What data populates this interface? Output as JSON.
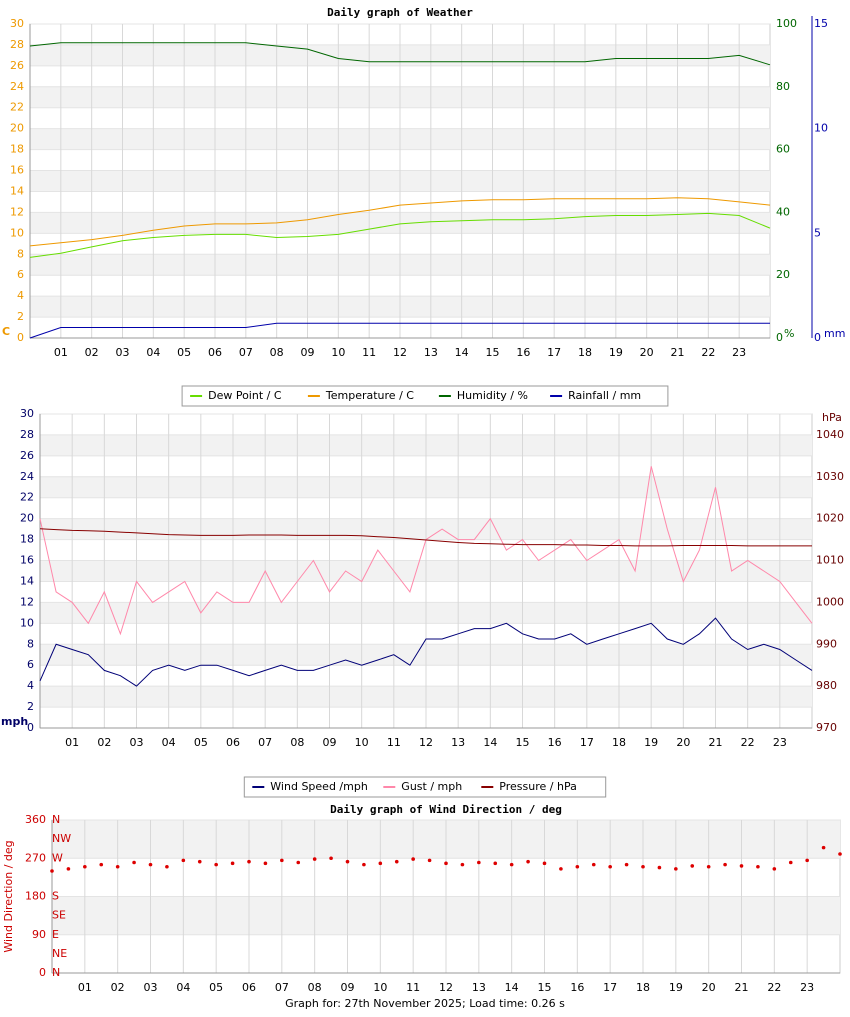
{
  "chart_data": [
    {
      "type": "line",
      "title": "Daily graph of Weather",
      "x": [
        0,
        1,
        2,
        3,
        4,
        5,
        6,
        7,
        8,
        9,
        10,
        11,
        12,
        13,
        14,
        15,
        16,
        17,
        18,
        19,
        20,
        21,
        22,
        23,
        24
      ],
      "xlim": [
        0,
        24
      ],
      "xticks": [
        {
          "value": 1,
          "label": "01"
        },
        {
          "value": 2,
          "label": "02"
        },
        {
          "value": 3,
          "label": "03"
        },
        {
          "value": 4,
          "label": "04"
        },
        {
          "value": 5,
          "label": "05"
        },
        {
          "value": 6,
          "label": "06"
        },
        {
          "value": 7,
          "label": "07"
        },
        {
          "value": 8,
          "label": "08"
        },
        {
          "value": 9,
          "label": "09"
        },
        10,
        11,
        12,
        13,
        14,
        15,
        16,
        17,
        18,
        19,
        20,
        21,
        22,
        23
      ],
      "ylim": [
        0,
        30
      ],
      "yticks": [
        0,
        2,
        4,
        6,
        8,
        10,
        12,
        14,
        16,
        18,
        20,
        22,
        24,
        26,
        28,
        30
      ],
      "y_unit": "C",
      "y_color": "#ee9900",
      "y2lim": [
        0,
        100
      ],
      "y2ticks": [
        0,
        20,
        40,
        60,
        80,
        100
      ],
      "y2_unit": "%",
      "y2_color": "#006600",
      "y3lim": [
        0,
        15
      ],
      "y3ticks": [
        0,
        5,
        10,
        15
      ],
      "y3_unit": "mm",
      "y3_color": "#0000aa",
      "grid": true,
      "legend": "bottom",
      "series": [
        {
          "name": "Dew Point / C",
          "color": "#66dd00",
          "values": [
            7.7,
            8.1,
            8.7,
            9.3,
            9.6,
            9.8,
            9.9,
            9.9,
            9.6,
            9.7,
            9.9,
            10.4,
            10.9,
            11.1,
            11.2,
            11.3,
            11.3,
            11.4,
            11.6,
            11.7,
            11.7,
            11.8,
            11.9,
            11.7,
            10.5
          ]
        },
        {
          "name": "Temperature / C",
          "color": "#ee9900",
          "values": [
            8.8,
            9.1,
            9.4,
            9.8,
            10.3,
            10.7,
            10.9,
            10.9,
            11.0,
            11.3,
            11.8,
            12.2,
            12.7,
            12.9,
            13.1,
            13.2,
            13.2,
            13.3,
            13.3,
            13.3,
            13.3,
            13.4,
            13.3,
            13.0,
            12.7
          ]
        },
        {
          "name": "Humidity / %",
          "color": "#006600",
          "axis": "y2",
          "values": [
            93,
            94,
            94,
            94,
            94,
            94,
            94,
            94,
            93,
            92,
            89,
            88,
            88,
            88,
            88,
            88,
            88,
            88,
            88,
            89,
            89,
            89,
            89,
            90,
            87
          ]
        },
        {
          "name": "Rainfall / mm",
          "color": "#0000aa",
          "axis": "y3",
          "values": [
            0,
            0.5,
            0.5,
            0.5,
            0.5,
            0.5,
            0.5,
            0.5,
            0.7,
            0.7,
            0.7,
            0.7,
            0.7,
            0.7,
            0.7,
            0.7,
            0.7,
            0.7,
            0.7,
            0.7,
            0.7,
            0.7,
            0.7,
            0.7,
            0.7
          ]
        }
      ]
    },
    {
      "type": "line",
      "x": [
        0,
        0.5,
        1,
        1.5,
        2,
        2.5,
        3,
        3.5,
        4,
        4.5,
        5,
        5.5,
        6,
        6.5,
        7,
        7.5,
        8,
        8.5,
        9,
        9.5,
        10,
        10.5,
        11,
        11.5,
        12,
        12.5,
        13,
        13.5,
        14,
        14.5,
        15,
        15.5,
        16,
        16.5,
        17,
        17.5,
        18,
        18.5,
        19,
        19.5,
        20,
        20.5,
        21,
        21.5,
        22,
        22.5,
        23,
        23.5,
        24
      ],
      "xlim": [
        0,
        24
      ],
      "xticks": [
        {
          "value": 1,
          "label": "01"
        },
        {
          "value": 2,
          "label": "02"
        },
        {
          "value": 3,
          "label": "03"
        },
        {
          "value": 4,
          "label": "04"
        },
        {
          "value": 5,
          "label": "05"
        },
        {
          "value": 6,
          "label": "06"
        },
        {
          "value": 7,
          "label": "07"
        },
        {
          "value": 8,
          "label": "08"
        },
        {
          "value": 9,
          "label": "09"
        },
        10,
        11,
        12,
        13,
        14,
        15,
        16,
        17,
        18,
        19,
        20,
        21,
        22,
        23
      ],
      "ylim": [
        0,
        30
      ],
      "yticks": [
        0,
        2,
        4,
        6,
        8,
        10,
        12,
        14,
        16,
        18,
        20,
        22,
        24,
        26,
        28,
        30
      ],
      "y_unit": "mph",
      "y_color": "#000066",
      "y2lim": [
        970,
        1045
      ],
      "y2ticks": [
        970,
        980,
        990,
        1000,
        1010,
        1020,
        1030,
        1040
      ],
      "y2_unit": "hPa",
      "y2_color": "#660000",
      "grid": true,
      "legend": "bottom",
      "series": [
        {
          "name": "Wind Speed /mph",
          "color": "#000077",
          "values": [
            4.5,
            8,
            7.5,
            7,
            5.5,
            5,
            4,
            5.5,
            6,
            5.5,
            6,
            6,
            5.5,
            5,
            5.5,
            6,
            5.5,
            5.5,
            6,
            6.5,
            6,
            6.5,
            7,
            6,
            8.5,
            8.5,
            9,
            9.5,
            9.5,
            10,
            9,
            8.5,
            8.5,
            9,
            8,
            8.5,
            9,
            9.5,
            10,
            8.5,
            8,
            9,
            10.5,
            8.5,
            7.5,
            8,
            7.5,
            6.5,
            5.5
          ]
        },
        {
          "name": "Gust / mph",
          "color": "#ff88aa",
          "values": [
            20,
            13,
            12,
            10,
            13,
            9,
            14,
            12,
            13,
            14,
            11,
            13,
            12,
            12,
            15,
            12,
            14,
            16,
            13,
            15,
            14,
            17,
            15,
            13,
            18,
            19,
            18,
            18,
            20,
            17,
            18,
            16,
            17,
            18,
            16,
            17,
            18,
            15,
            25,
            19,
            14,
            17,
            23,
            15,
            16,
            15,
            14,
            12,
            10
          ]
        },
        {
          "name": "Pressure / hPa",
          "color": "#880000",
          "axis": "y2",
          "values": [
            1017.6,
            1017.4,
            1017.2,
            1017.1,
            1017,
            1016.8,
            1016.6,
            1016.4,
            1016.2,
            1016.1,
            1016,
            1016,
            1016,
            1016.1,
            1016.1,
            1016.1,
            1016,
            1016,
            1016,
            1016,
            1015.9,
            1015.7,
            1015.5,
            1015.2,
            1014.9,
            1014.6,
            1014.3,
            1014.1,
            1014,
            1013.9,
            1013.8,
            1013.8,
            1013.8,
            1013.7,
            1013.7,
            1013.6,
            1013.6,
            1013.5,
            1013.5,
            1013.5,
            1013.6,
            1013.6,
            1013.6,
            1013.6,
            1013.5,
            1013.5,
            1013.5,
            1013.5,
            1013.5
          ]
        }
      ]
    },
    {
      "type": "scatter",
      "title": "Daily graph of Wind Direction / deg",
      "y_label": "Wind Direction / deg",
      "x": [
        0,
        0.5,
        1,
        1.5,
        2,
        2.5,
        3,
        3.5,
        4,
        4.5,
        5,
        5.5,
        6,
        6.5,
        7,
        7.5,
        8,
        8.5,
        9,
        9.5,
        10,
        10.5,
        11,
        11.5,
        12,
        12.5,
        13,
        13.5,
        14,
        14.5,
        15,
        15.5,
        16,
        16.5,
        17,
        17.5,
        18,
        18.5,
        19,
        19.5,
        20,
        20.5,
        21,
        21.5,
        22,
        22.5,
        23,
        23.5,
        24
      ],
      "xlim": [
        0,
        24
      ],
      "xticks": [
        {
          "value": 1,
          "label": "01"
        },
        {
          "value": 2,
          "label": "02"
        },
        {
          "value": 3,
          "label": "03"
        },
        {
          "value": 4,
          "label": "04"
        },
        {
          "value": 5,
          "label": "05"
        },
        {
          "value": 6,
          "label": "06"
        },
        {
          "value": 7,
          "label": "07"
        },
        {
          "value": 8,
          "label": "08"
        },
        {
          "value": 9,
          "label": "09"
        },
        10,
        11,
        12,
        13,
        14,
        15,
        16,
        17,
        18,
        19,
        20,
        21,
        22,
        23
      ],
      "ylim": [
        0,
        360
      ],
      "yticks": [
        0,
        90,
        180,
        270,
        360
      ],
      "y_color": "#cc0000",
      "compass_ticks": [
        {
          "value": 0,
          "label": "N"
        },
        {
          "value": 45,
          "label": "NE"
        },
        {
          "value": 90,
          "label": "E"
        },
        {
          "value": 135,
          "label": "SE"
        },
        {
          "value": 180,
          "label": "S"
        },
        {
          "value": 270,
          "label": "W"
        },
        {
          "value": 315,
          "label": "NW"
        },
        {
          "value": 360,
          "label": "N"
        }
      ],
      "grid": true,
      "color": "#dd0000",
      "values": [
        240,
        245,
        250,
        255,
        250,
        260,
        255,
        250,
        265,
        262,
        255,
        258,
        262,
        258,
        265,
        260,
        268,
        270,
        262,
        255,
        258,
        262,
        268,
        265,
        258,
        255,
        260,
        258,
        255,
        262,
        258,
        245,
        250,
        255,
        250,
        255,
        250,
        248,
        245,
        252,
        250,
        255,
        252,
        250,
        245,
        260,
        265,
        295,
        280
      ]
    }
  ],
  "footer": "Graph for: 27th November 2025; Load time: 0.26 s"
}
